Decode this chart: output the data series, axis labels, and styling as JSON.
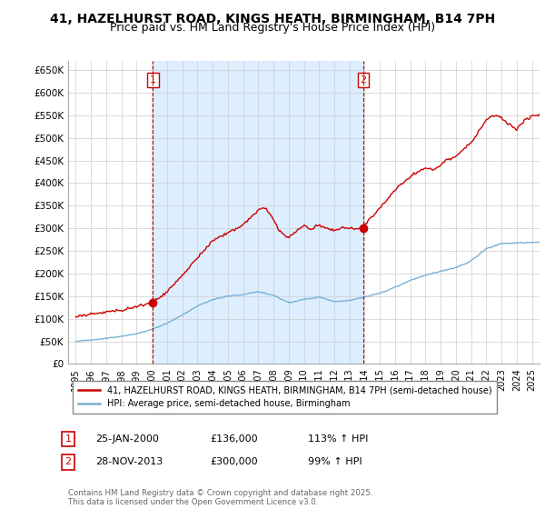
{
  "title": "41, HAZELHURST ROAD, KINGS HEATH, BIRMINGHAM, B14 7PH",
  "subtitle": "Price paid vs. HM Land Registry's House Price Index (HPI)",
  "title_fontsize": 10,
  "subtitle_fontsize": 9,
  "bg_color": "#ffffff",
  "plot_bg_color": "#ffffff",
  "shade_color": "#ddeeff",
  "grid_color": "#cccccc",
  "red_color": "#cc0000",
  "blue_color": "#7ab0d4",
  "sale1_date_x": 2000.07,
  "sale1_price": 136000,
  "sale2_date_x": 2013.92,
  "sale2_price": 300000,
  "ylim": [
    0,
    670000
  ],
  "xlim": [
    1994.5,
    2025.5
  ],
  "yticks": [
    0,
    50000,
    100000,
    150000,
    200000,
    250000,
    300000,
    350000,
    400000,
    450000,
    500000,
    550000,
    600000,
    650000
  ],
  "ytick_labels": [
    "£0",
    "£50K",
    "£100K",
    "£150K",
    "£200K",
    "£250K",
    "£300K",
    "£350K",
    "£400K",
    "£450K",
    "£500K",
    "£550K",
    "£600K",
    "£650K"
  ],
  "xticks": [
    1995,
    1996,
    1997,
    1998,
    1999,
    2000,
    2001,
    2002,
    2003,
    2004,
    2005,
    2006,
    2007,
    2008,
    2009,
    2010,
    2011,
    2012,
    2013,
    2014,
    2015,
    2016,
    2017,
    2018,
    2019,
    2020,
    2021,
    2022,
    2023,
    2024,
    2025
  ],
  "legend_label_red": "41, HAZELHURST ROAD, KINGS HEATH, BIRMINGHAM, B14 7PH (semi-detached house)",
  "legend_label_blue": "HPI: Average price, semi-detached house, Birmingham",
  "annotation1_date": "25-JAN-2000",
  "annotation1_price": "£136,000",
  "annotation1_hpi": "113% ↑ HPI",
  "annotation2_date": "28-NOV-2013",
  "annotation2_price": "£300,000",
  "annotation2_hpi": "99% ↑ HPI",
  "footer": "Contains HM Land Registry data © Crown copyright and database right 2025.\nThis data is licensed under the Open Government Licence v3.0."
}
